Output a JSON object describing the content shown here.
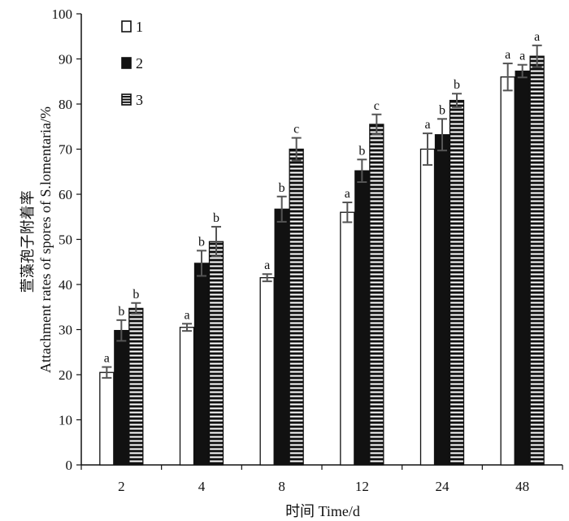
{
  "chart_data": {
    "type": "bar",
    "categories": [
      "2",
      "4",
      "8",
      "12",
      "24",
      "48"
    ],
    "xlabel": "时间 Time/d",
    "ylabel_cn": "萱藻孢子附着率",
    "ylabel_en": "Attachment rates of spores of S.lomentaria/%",
    "ylim": [
      0,
      100
    ],
    "yticks": [
      0,
      10,
      20,
      30,
      40,
      50,
      60,
      70,
      80,
      90,
      100
    ],
    "grid": false,
    "legend_position": "top-left",
    "series": [
      {
        "name": "1",
        "fill": "white",
        "values": [
          20.5,
          30.5,
          41.5,
          56,
          70,
          86
        ],
        "errors": [
          1.2,
          0.8,
          0.8,
          2.2,
          3.5,
          3
        ],
        "letters": [
          "a",
          "a",
          "a",
          "a",
          "a",
          "a"
        ]
      },
      {
        "name": "2",
        "fill": "solid",
        "values": [
          29.8,
          44.7,
          56.7,
          65.2,
          73.2,
          87.3
        ],
        "errors": [
          2.3,
          2.8,
          2.8,
          2.5,
          3.5,
          1.4
        ],
        "letters": [
          "b",
          "b",
          "b",
          "b",
          "b",
          "a"
        ]
      },
      {
        "name": "3",
        "fill": "striped",
        "values": [
          34.7,
          49.5,
          70,
          75.5,
          80.8,
          90.6
        ],
        "errors": [
          1.2,
          3.3,
          2.5,
          2.2,
          1.5,
          2.4
        ],
        "letters": [
          "b",
          "b",
          "c",
          "c",
          "b",
          "a"
        ]
      }
    ],
    "colors": {
      "bar_edge": "#111111",
      "solid": "#111111",
      "stripe": "#ffffff",
      "error_bar": "#555555"
    }
  }
}
